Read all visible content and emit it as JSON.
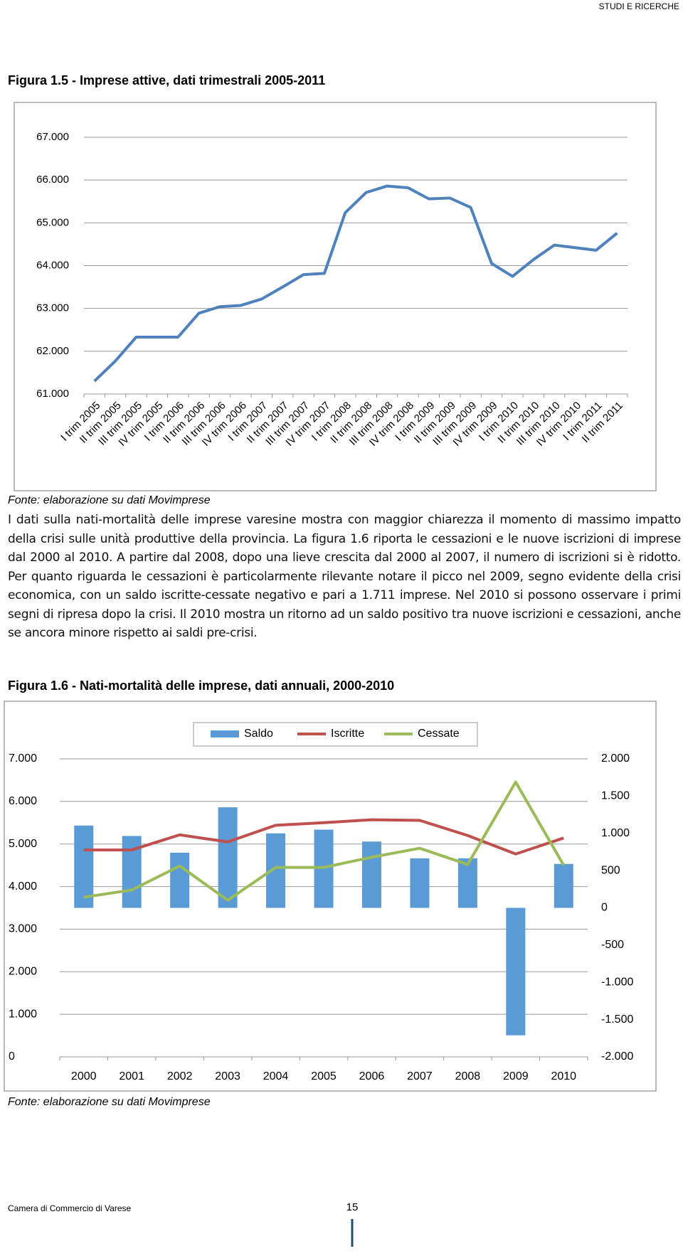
{
  "header": {
    "section": "STUDI E RICERCHE"
  },
  "body": {
    "paragraph": "I dati sulla nati-mortalità delle imprese varesine mostra con maggior chiarezza il momento di massimo impatto della crisi sulle unità produttive della provincia. La figura 1.6 riporta le cessazioni e le nuove iscrizioni di imprese dal 2000 al 2010. A partire dal 2008, dopo una lieve crescita dal 2000 al 2007, il numero di iscrizioni si è ridotto. Per quanto riguarda le cessazioni è particolarmente rilevante notare il picco nel 2009, segno evidente della crisi economica, con un saldo iscritte-cessate negativo e pari a 1.711 imprese. Nel 2010 si possono osservare i primi segni di ripresa dopo la crisi. Il 2010 mostra un ritorno ad un saldo positivo tra nuove iscrizioni e cessazioni, anche se ancora minore rispetto ai saldi pre-crisi."
  },
  "footer": {
    "publisher": "Camera di Commercio di Varese",
    "page": "15"
  },
  "chart_data": [
    {
      "type": "line",
      "title": "Figura 1.5 - Imprese attive, dati trimestrali 2005-2011",
      "source": "Fonte: elaborazione su dati Movimprese",
      "categories": [
        "I trim 2005",
        "II trim 2005",
        "III trim 2005",
        "IV trim 2005",
        "I trim 2006",
        "II trim 2006",
        "III trim 2006",
        "IV trim 2006",
        "I trim 2007",
        "II trim 2007",
        "III trim 2007",
        "IV trim 2007",
        "I trim 2008",
        "II trim 2008",
        "III trim 2008",
        "IV trim 2008",
        "I trim 2009",
        "II trim 2009",
        "III trim 2009",
        "IV trim 2009",
        "I trim 2010",
        "II trim 2010",
        "III trim 2010",
        "IV trim 2010",
        "I trim 2011",
        "II trim 2011"
      ],
      "values": [
        61300,
        61770,
        62330,
        62330,
        62330,
        62890,
        63040,
        63070,
        63220,
        63500,
        63790,
        63820,
        65240,
        65710,
        65860,
        65820,
        65560,
        65580,
        65360,
        64050,
        63750,
        64140,
        64480,
        64420,
        64360,
        64760
      ],
      "color": "#4f81bd",
      "ylim": [
        61000,
        67000
      ],
      "yticks": [
        {
          "value": 61000,
          "label": "61.000"
        },
        {
          "value": 62000,
          "label": "62.000"
        },
        {
          "value": 63000,
          "label": "63.000"
        },
        {
          "value": 64000,
          "label": "64.000"
        },
        {
          "value": 65000,
          "label": "65.000"
        },
        {
          "value": 66000,
          "label": "66.000"
        },
        {
          "value": 67000,
          "label": "67.000"
        }
      ],
      "grid": true
    },
    {
      "type": "bar",
      "title": "Figura 1.6 - Nati-mortalità delle imprese, dati annuali, 2000-2010",
      "source": "Fonte: elaborazione su dati Movimprese",
      "categories": [
        "2000",
        "2001",
        "2002",
        "2003",
        "2004",
        "2005",
        "2006",
        "2007",
        "2008",
        "2009",
        "2010"
      ],
      "series": [
        {
          "name": "Saldo",
          "type": "bar",
          "axis": "y2",
          "color": "#5b9bd5",
          "values": [
            1105,
            965,
            740,
            1350,
            1000,
            1050,
            890,
            665,
            665,
            -1711,
            590
          ]
        },
        {
          "name": "Iscritte",
          "type": "line",
          "color": "#c0504d",
          "values": [
            4860,
            4860,
            5215,
            5050,
            5440,
            5500,
            5570,
            5555,
            5200,
            4765,
            5140
          ]
        },
        {
          "name": "Cessate",
          "type": "line",
          "color": "#9bbb59",
          "values": [
            3750,
            3920,
            4485,
            3680,
            4450,
            4450,
            4690,
            4900,
            4520,
            6455,
            4500
          ]
        }
      ],
      "ylim": [
        0,
        7000
      ],
      "yticks": [
        0,
        {
          "value": 1000,
          "label": "1.000"
        },
        {
          "value": 2000,
          "label": "2.000"
        },
        {
          "value": 3000,
          "label": "3.000"
        },
        {
          "value": 4000,
          "label": "4.000"
        },
        {
          "value": 5000,
          "label": "5.000"
        },
        {
          "value": 6000,
          "label": "6.000"
        },
        {
          "value": 7000,
          "label": "7.000"
        }
      ],
      "y2lim": [
        -2000,
        2000
      ],
      "y2ticks": [
        {
          "value": -2000,
          "label": "-2.000"
        },
        {
          "value": -1500,
          "label": "-1.500"
        },
        {
          "value": -1000,
          "label": "-1.000"
        },
        -500,
        0,
        500,
        {
          "value": 1000,
          "label": "1.000"
        },
        {
          "value": 1500,
          "label": "1.500"
        },
        {
          "value": 2000,
          "label": "2.000"
        }
      ],
      "grid": true
    }
  ]
}
